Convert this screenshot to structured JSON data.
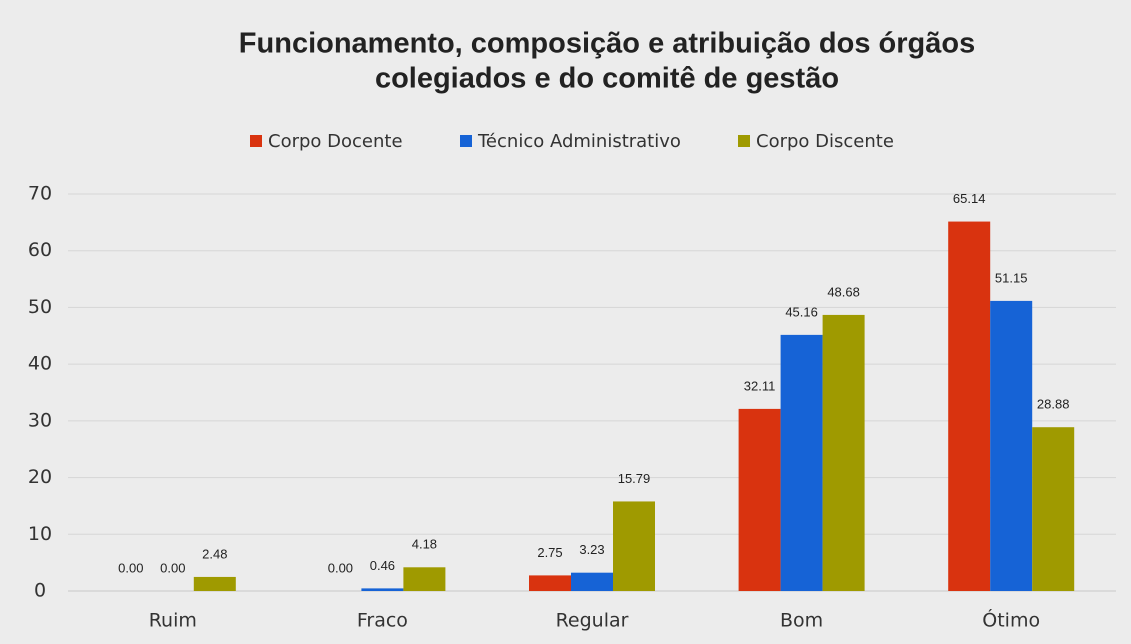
{
  "chart_data": {
    "type": "bar",
    "title": [
      "Funcionamento, composição e atribuição dos órgãos",
      "colegiados e do comitê de gestão"
    ],
    "categories": [
      "Ruim",
      "Fraco",
      "Regular",
      "Bom",
      "Ótimo"
    ],
    "series": [
      {
        "name": "Corpo Docente",
        "color": "#d9330f",
        "values": [
          0,
          0,
          2.75,
          32.11,
          65.14
        ],
        "value_labels": [
          "0.00",
          "0.00",
          "2.75",
          "32.11",
          "65.14"
        ]
      },
      {
        "name": "Técnico Administrativo",
        "color": "#1663d6",
        "values": [
          0,
          0.46,
          3.23,
          45.16,
          51.15
        ],
        "value_labels": [
          "0.00",
          "0.46",
          "3.23",
          "45.16",
          "51.15"
        ]
      },
      {
        "name": "Corpo Discente",
        "color": "#9f9a00",
        "values": [
          2.48,
          4.18,
          15.79,
          48.68,
          28.88
        ],
        "value_labels": [
          "2.48",
          "4.18",
          "15.79",
          "48.68",
          "28.88"
        ]
      }
    ],
    "ylim": [
      0,
      70
    ],
    "yticks": [
      0,
      10,
      20,
      30,
      40,
      50,
      60,
      70
    ],
    "grid": true,
    "legend": "top"
  }
}
